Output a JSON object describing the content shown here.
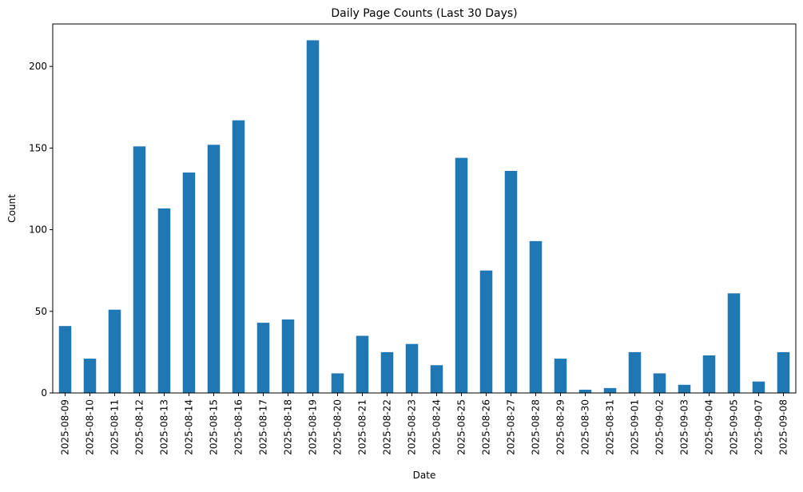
{
  "chart_data": {
    "type": "bar",
    "title": "Daily Page Counts (Last 30 Days)",
    "xlabel": "Date",
    "ylabel": "Count",
    "ylim": [
      0,
      226
    ],
    "yticks": [
      0,
      50,
      100,
      150,
      200
    ],
    "grid": false,
    "legend": "none",
    "bar_color": "#1f77b4",
    "categories": [
      "2025-08-09",
      "2025-08-10",
      "2025-08-11",
      "2025-08-12",
      "2025-08-13",
      "2025-08-14",
      "2025-08-15",
      "2025-08-16",
      "2025-08-17",
      "2025-08-18",
      "2025-08-19",
      "2025-08-20",
      "2025-08-21",
      "2025-08-22",
      "2025-08-23",
      "2025-08-24",
      "2025-08-25",
      "2025-08-26",
      "2025-08-27",
      "2025-08-28",
      "2025-08-29",
      "2025-08-30",
      "2025-08-31",
      "2025-09-01",
      "2025-09-02",
      "2025-09-03",
      "2025-09-04",
      "2025-09-05",
      "2025-09-07",
      "2025-09-08"
    ],
    "values": [
      41,
      21,
      51,
      151,
      113,
      135,
      152,
      167,
      43,
      45,
      216,
      12,
      35,
      25,
      30,
      17,
      144,
      75,
      136,
      93,
      21,
      2,
      3,
      25,
      12,
      5,
      23,
      61,
      7,
      25
    ]
  }
}
